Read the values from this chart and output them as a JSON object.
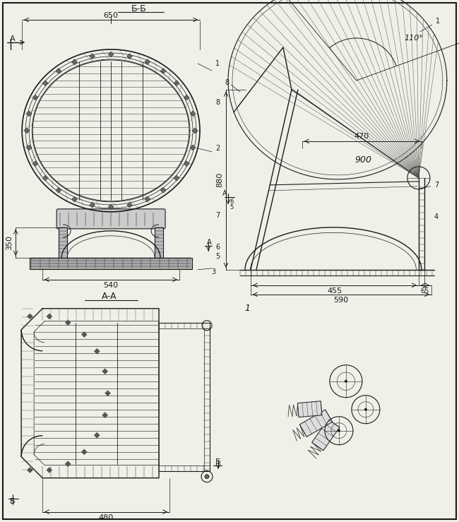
{
  "bg_color": "#f0efe8",
  "line_color": "#1a1a1a",
  "labels": {
    "BB": "Б-Б",
    "AA": "А-А",
    "view1": "1",
    "dim_650": "650",
    "dim_540": "540",
    "dim_350": "350",
    "dim_880": "880",
    "dim_470": "470",
    "dim_900": "900",
    "dim_110": "110°",
    "dim_455": "455",
    "dim_65": "65",
    "dim_590": "590",
    "dim_480": "480"
  }
}
